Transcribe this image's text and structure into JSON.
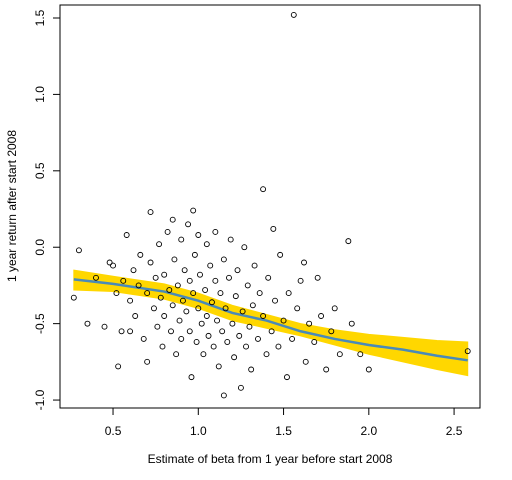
{
  "chart_data": {
    "type": "scatter",
    "xlabel": "Estimate of beta from 1 year before start 2008",
    "ylabel": "1 year return after start 2008",
    "xlim": [
      0.189,
      2.652
    ],
    "ylim": [
      -1.052,
      1.585
    ],
    "xticks": [
      0.5,
      {
        "value": 1,
        "label": "1.0"
      },
      1.5,
      {
        "value": 2,
        "label": "2.0"
      },
      2.5
    ],
    "yticks": [
      {
        "value": -1,
        "label": "-1.0"
      },
      -0.5,
      {
        "value": 0,
        "label": "0.0"
      },
      0.5,
      {
        "value": 1,
        "label": "1.0"
      },
      1.5
    ],
    "point_color": "#000000",
    "x": [
      0.27,
      0.3,
      0.35,
      0.4,
      0.45,
      0.48,
      0.5,
      0.52,
      0.53,
      0.55,
      0.56,
      0.58,
      0.6,
      0.6,
      0.62,
      0.63,
      0.65,
      0.66,
      0.68,
      0.7,
      0.7,
      0.72,
      0.72,
      0.74,
      0.75,
      0.76,
      0.77,
      0.78,
      0.79,
      0.8,
      0.8,
      0.82,
      0.83,
      0.84,
      0.85,
      0.85,
      0.86,
      0.87,
      0.88,
      0.89,
      0.9,
      0.9,
      0.91,
      0.92,
      0.93,
      0.94,
      0.95,
      0.95,
      0.96,
      0.97,
      0.97,
      0.98,
      0.99,
      1.0,
      1.0,
      1.01,
      1.02,
      1.03,
      1.04,
      1.05,
      1.05,
      1.06,
      1.07,
      1.08,
      1.09,
      1.1,
      1.1,
      1.11,
      1.12,
      1.13,
      1.14,
      1.15,
      1.15,
      1.16,
      1.17,
      1.18,
      1.19,
      1.2,
      1.21,
      1.22,
      1.23,
      1.24,
      1.25,
      1.26,
      1.27,
      1.28,
      1.29,
      1.3,
      1.31,
      1.32,
      1.33,
      1.35,
      1.36,
      1.38,
      1.38,
      1.4,
      1.41,
      1.43,
      1.44,
      1.45,
      1.47,
      1.48,
      1.5,
      1.52,
      1.53,
      1.55,
      1.56,
      1.58,
      1.6,
      1.62,
      1.63,
      1.65,
      1.68,
      1.7,
      1.72,
      1.75,
      1.78,
      1.8,
      1.83,
      1.88,
      1.9,
      1.95,
      2.0,
      2.58
    ],
    "y": [
      -0.33,
      -0.02,
      -0.5,
      -0.2,
      -0.52,
      -0.1,
      -0.12,
      -0.3,
      -0.78,
      -0.55,
      -0.22,
      0.08,
      -0.35,
      -0.55,
      -0.15,
      -0.45,
      -0.25,
      -0.05,
      -0.6,
      -0.75,
      -0.3,
      0.23,
      -0.1,
      -0.4,
      -0.2,
      -0.52,
      0.02,
      -0.33,
      -0.65,
      -0.18,
      -0.45,
      0.1,
      -0.28,
      -0.55,
      0.18,
      -0.38,
      -0.08,
      -0.7,
      -0.25,
      -0.48,
      0.05,
      -0.6,
      -0.35,
      -0.15,
      -0.42,
      0.15,
      -0.55,
      -0.22,
      -0.85,
      0.24,
      -0.3,
      -0.05,
      -0.62,
      -0.4,
      0.08,
      -0.18,
      -0.5,
      -0.7,
      -0.28,
      0.02,
      -0.45,
      -0.58,
      -0.12,
      -0.36,
      -0.65,
      -0.22,
      0.1,
      -0.48,
      -0.78,
      -0.3,
      -0.55,
      -0.97,
      -0.08,
      -0.4,
      -0.62,
      -0.2,
      0.05,
      -0.5,
      -0.72,
      -0.32,
      -0.15,
      -0.58,
      -0.92,
      -0.42,
      0.0,
      -0.65,
      -0.25,
      -0.52,
      -0.8,
      -0.38,
      -0.12,
      -0.6,
      -0.3,
      0.38,
      -0.45,
      -0.7,
      -0.2,
      -0.55,
      0.12,
      -0.35,
      -0.65,
      -0.05,
      -0.48,
      -0.85,
      -0.3,
      -0.6,
      1.52,
      -0.4,
      -0.22,
      -0.1,
      -0.75,
      -0.5,
      -0.62,
      -0.2,
      -0.45,
      -0.8,
      -0.55,
      -0.4,
      -0.7,
      0.04,
      -0.5,
      -0.7,
      -0.8,
      -0.68
    ],
    "band": {
      "color": "#ffd700",
      "x": [
        0.27,
        0.5,
        0.8,
        1.0,
        1.2,
        1.4,
        1.6,
        1.8,
        2.0,
        2.2,
        2.4,
        2.58
      ],
      "upper": [
        -0.15,
        -0.19,
        -0.24,
        -0.3,
        -0.38,
        -0.44,
        -0.5,
        -0.54,
        -0.57,
        -0.59,
        -0.61,
        -0.62
      ],
      "lower": [
        -0.28,
        -0.29,
        -0.34,
        -0.4,
        -0.48,
        -0.53,
        -0.58,
        -0.64,
        -0.7,
        -0.75,
        -0.8,
        -0.84
      ]
    },
    "fit": {
      "color": "#4a8ab8",
      "x": [
        0.27,
        0.5,
        0.8,
        1.0,
        1.2,
        1.4,
        1.6,
        1.8,
        2.0,
        2.2,
        2.4,
        2.58
      ],
      "values": [
        -0.21,
        -0.24,
        -0.29,
        -0.35,
        -0.43,
        -0.48,
        -0.55,
        -0.6,
        -0.64,
        -0.67,
        -0.71,
        -0.74
      ]
    }
  }
}
